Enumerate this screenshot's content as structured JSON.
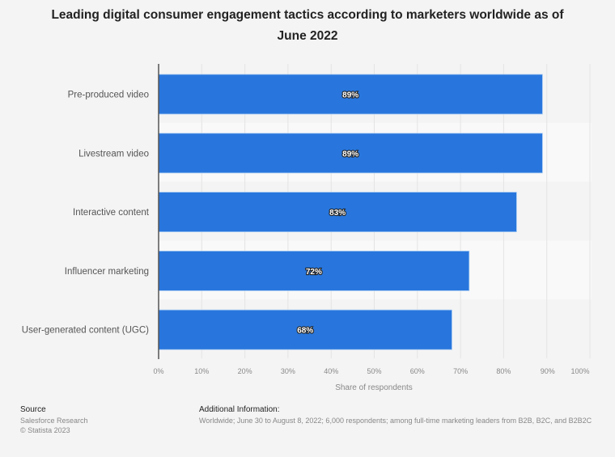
{
  "chart_data": {
    "type": "bar",
    "orientation": "horizontal",
    "title": "Leading digital consumer engagement tactics according to marketers worldwide as of June 2022",
    "title_lines": [
      "Leading digital consumer engagement tactics according to marketers worldwide as of",
      "June 2022"
    ],
    "categories": [
      "Pre-produced video",
      "Livestream video",
      "Interactive content",
      "Influencer marketing",
      "User-generated content (UGC)"
    ],
    "values": [
      89,
      89,
      83,
      72,
      68
    ],
    "data_labels": [
      "89%",
      "89%",
      "83%",
      "72%",
      "68%"
    ],
    "xlabel": "Share of respondents",
    "ylabel": "",
    "xlim": [
      0,
      100
    ],
    "ticks": [
      0,
      10,
      20,
      30,
      40,
      50,
      60,
      70,
      80,
      90,
      100
    ],
    "tick_labels": [
      "0%",
      "10%",
      "20%",
      "30%",
      "40%",
      "50%",
      "60%",
      "70%",
      "80%",
      "90%",
      "100%"
    ],
    "grid": true,
    "legend": "none",
    "bar_color": "#2876dd"
  },
  "footer": {
    "source_heading": "Source",
    "source_lines": [
      "Salesforce Research",
      "© Statista 2023"
    ],
    "additional_heading": "Additional Information:",
    "additional_text": "Worldwide; June 30 to August 8, 2022; 6,000 respondents; among full-time marketing leaders from B2B, B2C, and B2B2C"
  }
}
